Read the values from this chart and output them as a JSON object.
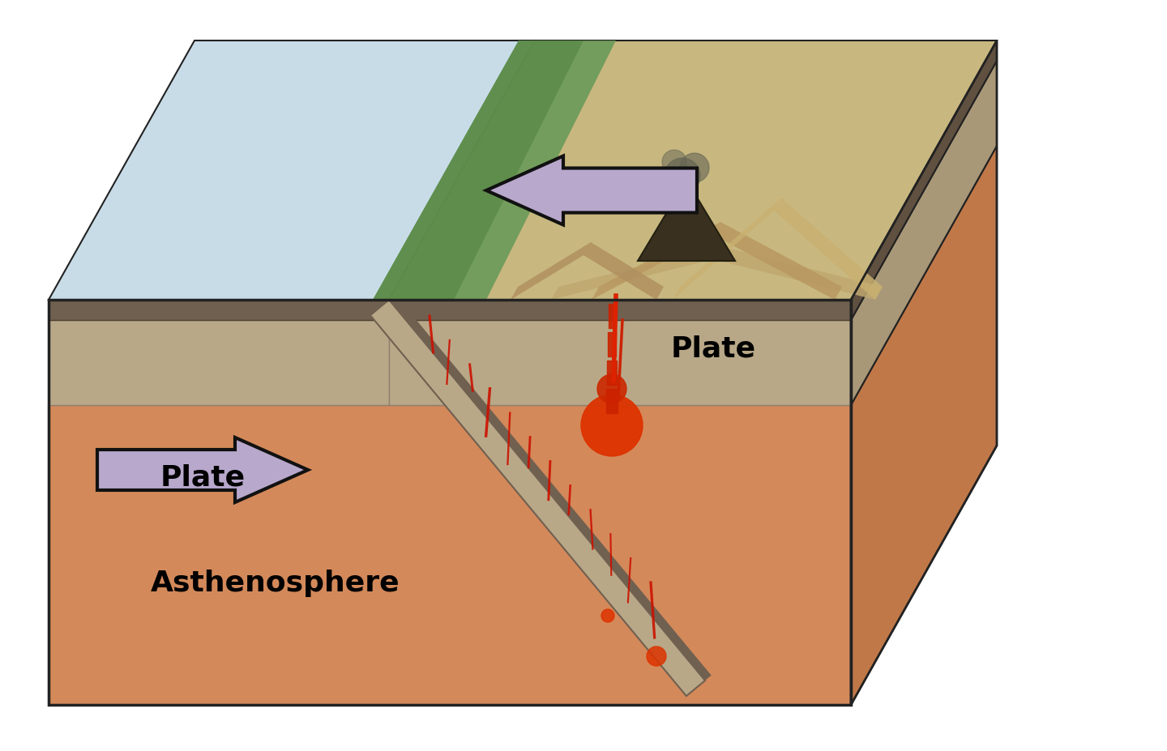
{
  "figure_size": [
    14.4,
    9.27
  ],
  "dpi": 100,
  "background_color": "#ffffff",
  "labels": {
    "plate_left": "Plate",
    "plate_right": "Plate",
    "asthenosphere": "Asthenosphere"
  },
  "colors": {
    "ocean_blue": "#c8dce8",
    "asthen_orange": "#d4895a",
    "asthen_side": "#c07848",
    "plate_tan": "#b8a888",
    "plate_side": "#a89878",
    "crust_dark": "#706050",
    "crust_side": "#605040",
    "arrow_fill": "#b8a8cc",
    "arrow_edge": "#111111",
    "land_green": "#6a9a58",
    "land_tan": "#c8b880",
    "land_brown": "#a89060",
    "volcano_dark": "#3a3020",
    "magma_red": "#cc2200",
    "magma_orange": "#ee5500",
    "smoke": "#888878",
    "outline": "#222222"
  }
}
